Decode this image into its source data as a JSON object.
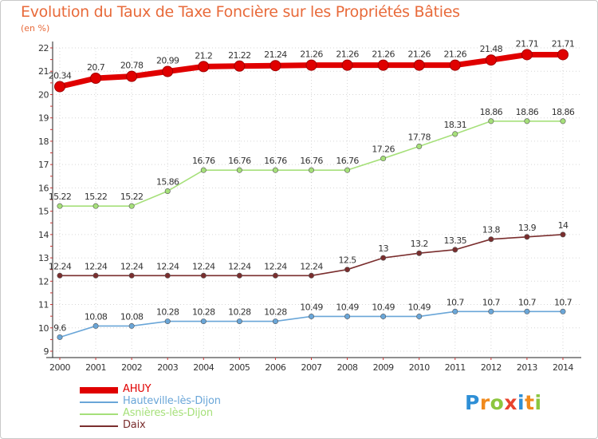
{
  "header": {
    "title": "Evolution du Taux de Taxe Foncière sur les Propriétés Bâties",
    "unit": "(en %)"
  },
  "brand": {
    "letters": [
      "P",
      "r",
      "o",
      "x",
      "i",
      "t",
      "i"
    ],
    "colors": [
      "#2e8fd6",
      "#f08a1d",
      "#8cc63f",
      "#e8432e",
      "#2e8fd6",
      "#f08a1d",
      "#8cc63f"
    ]
  },
  "chart_data": {
    "type": "line",
    "title": "Evolution du Taux de Taxe Foncière sur les Propriétés Bâties",
    "ylabel": "(en %)",
    "xlabel": "",
    "ylim": [
      9,
      22
    ],
    "yticks": [
      9,
      10,
      11,
      12,
      13,
      14,
      15,
      16,
      17,
      18,
      19,
      20,
      21,
      22
    ],
    "x": [
      "2000",
      "2001",
      "2002",
      "2003",
      "2004",
      "2005",
      "2006",
      "2007",
      "2008",
      "2009",
      "2010",
      "2011",
      "2012",
      "2013",
      "2014"
    ],
    "series": [
      {
        "name": "AHUY",
        "color": "#e00000",
        "values": [
          20.34,
          20.7,
          20.78,
          20.99,
          21.2,
          21.22,
          21.24,
          21.26,
          21.26,
          21.26,
          21.26,
          21.26,
          21.48,
          21.71,
          21.71
        ],
        "labels": [
          "20.34",
          "20.7",
          "20.78",
          "20.99",
          "21.2",
          "21.22",
          "21.24",
          "21.26",
          "21.26",
          "21.26",
          "21.26",
          "21.26",
          "21.48",
          "21.71",
          "21.71"
        ]
      },
      {
        "name": "Hauteville-lès-Dijon",
        "color": "#6aa6d8",
        "values": [
          9.6,
          10.08,
          10.08,
          10.28,
          10.28,
          10.28,
          10.28,
          10.49,
          10.49,
          10.49,
          10.49,
          10.7,
          10.7,
          10.7,
          10.7
        ],
        "labels": [
          "9.6",
          "10.08",
          "10.08",
          "10.28",
          "10.28",
          "10.28",
          "10.28",
          "10.49",
          "10.49",
          "10.49",
          "10.49",
          "10.7",
          "10.7",
          "10.7",
          "10.7"
        ]
      },
      {
        "name": "Asnières-lès-Dijon",
        "color": "#a6e07a",
        "values": [
          15.22,
          15.22,
          15.22,
          15.86,
          16.76,
          16.76,
          16.76,
          16.76,
          16.76,
          17.26,
          17.78,
          18.31,
          18.86,
          18.86,
          18.86
        ],
        "labels": [
          "15.22",
          "15.22",
          "15.22",
          "15.86",
          "16.76",
          "16.76",
          "16.76",
          "16.76",
          "16.76",
          "17.26",
          "17.78",
          "18.31",
          "18.86",
          "18.86",
          "18.86"
        ]
      },
      {
        "name": "Daix",
        "color": "#7a2e2e",
        "values": [
          12.24,
          12.24,
          12.24,
          12.24,
          12.24,
          12.24,
          12.24,
          12.24,
          12.5,
          13,
          13.2,
          13.35,
          13.8,
          13.9,
          14
        ],
        "labels": [
          "12.24",
          "12.24",
          "12.24",
          "12.24",
          "12.24",
          "12.24",
          "12.24",
          "12.24",
          "12.5",
          "13",
          "13.2",
          "13.35",
          "13.8",
          "13.9",
          "14"
        ]
      }
    ]
  }
}
